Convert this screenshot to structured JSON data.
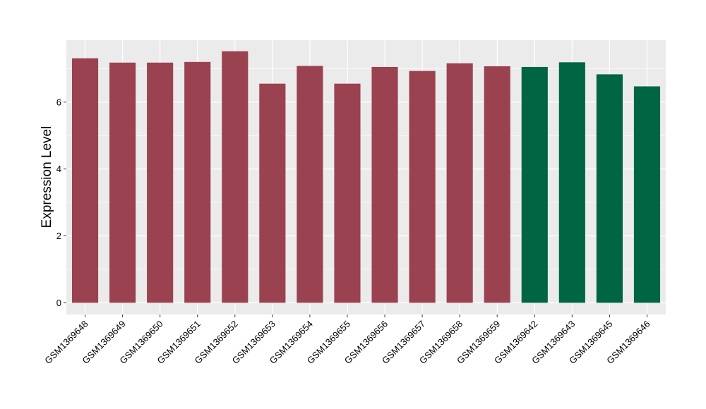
{
  "chart_data": {
    "type": "bar",
    "title": "",
    "xlabel": "",
    "ylabel": "Expression Level",
    "ylim": [
      -0.35,
      7.85
    ],
    "yticks": [
      0,
      2,
      4,
      6
    ],
    "grid": true,
    "legend": "none",
    "categories": [
      "GSM1369648",
      "GSM1369649",
      "GSM1369650",
      "GSM1369651",
      "GSM1369652",
      "GSM1369653",
      "GSM1369654",
      "GSM1369655",
      "GSM1369656",
      "GSM1369657",
      "GSM1369658",
      "GSM1369659",
      "GSM1369642",
      "GSM1369643",
      "GSM1369645",
      "GSM1369646"
    ],
    "values": [
      7.31,
      7.18,
      7.18,
      7.2,
      7.52,
      6.55,
      7.08,
      6.55,
      7.05,
      6.93,
      7.16,
      7.07,
      7.05,
      7.19,
      6.83,
      6.47
    ],
    "groups": [
      0,
      0,
      0,
      0,
      0,
      0,
      0,
      0,
      0,
      0,
      0,
      0,
      1,
      1,
      1,
      1
    ],
    "group_colors": [
      "#9b4250",
      "#006543"
    ],
    "panel_background": "#ebebeb",
    "grid_color": "#ffffff"
  }
}
